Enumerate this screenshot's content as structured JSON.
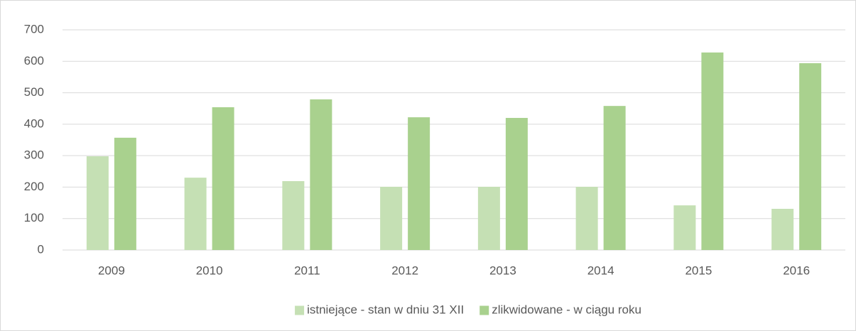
{
  "chart_data": {
    "type": "bar",
    "categories": [
      "2009",
      "2010",
      "2011",
      "2012",
      "2013",
      "2014",
      "2015",
      "2016"
    ],
    "series": [
      {
        "name": "istniejące - stan w dniu 31 XII",
        "color": "#c5e0b4",
        "values": [
          298,
          230,
          219,
          201,
          201,
          201,
          142,
          131
        ]
      },
      {
        "name": "zlikwidowane - w ciągu roku",
        "color": "#a9d18e",
        "values": [
          357,
          454,
          479,
          422,
          420,
          458,
          628,
          594
        ]
      }
    ],
    "ylim": [
      0,
      700
    ],
    "yticks": [
      0,
      100,
      200,
      300,
      400,
      500,
      600,
      700
    ],
    "grid": true,
    "legend": "bottom"
  }
}
